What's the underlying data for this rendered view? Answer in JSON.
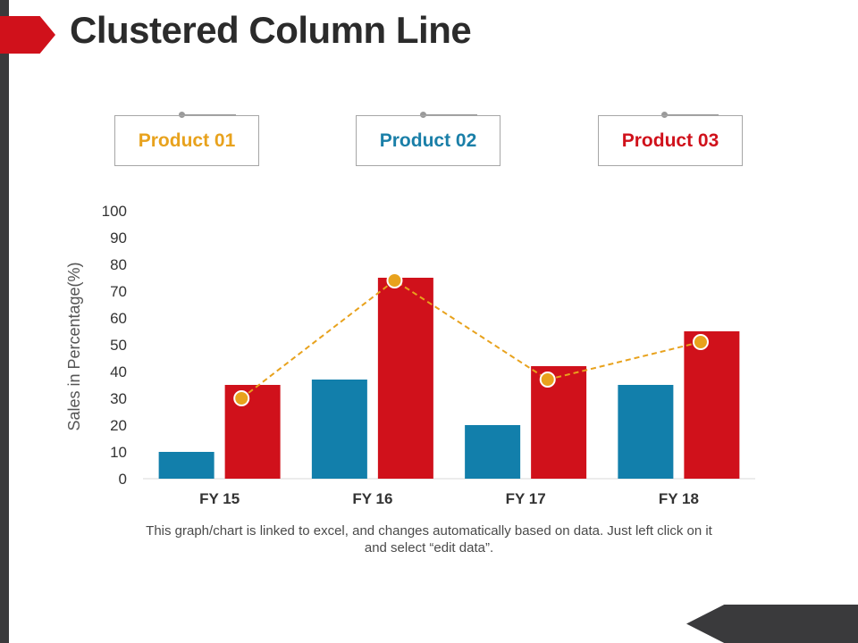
{
  "slide": {
    "title": "Clustered Column Line",
    "note": "This graph/chart is linked to excel, and changes automatically based on data. Just left click on it and select “edit data”."
  },
  "legend": [
    {
      "label": "Product 01",
      "color": "#e8a21d"
    },
    {
      "label": "Product 02",
      "color": "#1a7fa8"
    },
    {
      "label": "Product 03",
      "color": "#d0111b"
    }
  ],
  "chart_data": {
    "type": "bar",
    "title": "",
    "xlabel": "",
    "ylabel": "Sales in Percentage(%)",
    "ylim": [
      0,
      100
    ],
    "yticks": [
      0,
      10,
      20,
      30,
      40,
      50,
      60,
      70,
      80,
      90,
      100
    ],
    "categories": [
      "FY 15",
      "FY 16",
      "FY 17",
      "FY 18"
    ],
    "series": [
      {
        "name": "Product 02",
        "kind": "bar",
        "color": "#127fab",
        "values": [
          10,
          37,
          20,
          35
        ]
      },
      {
        "name": "Product 03",
        "kind": "bar",
        "color": "#d0111b",
        "values": [
          35,
          75,
          42,
          55
        ]
      },
      {
        "name": "Product 01",
        "kind": "line",
        "style": "dashed",
        "color": "#e8a21d",
        "values": [
          30,
          74,
          37,
          51
        ]
      }
    ]
  }
}
